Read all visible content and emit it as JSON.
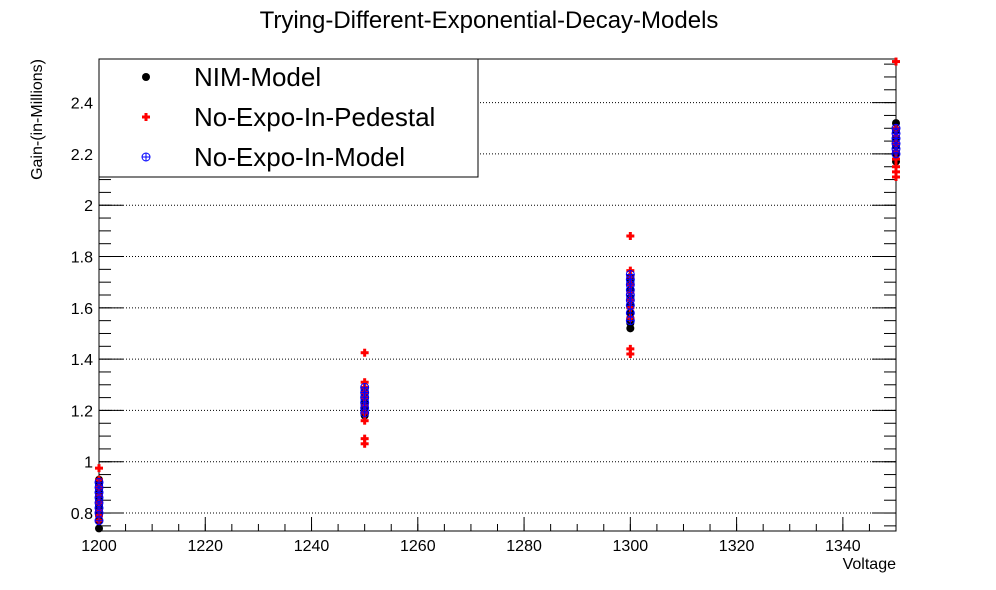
{
  "chart_data": {
    "type": "scatter",
    "title": "Trying-Different-Exponential-Decay-Models",
    "xlabel": "Voltage",
    "ylabel": "Gain-(in-Millions)",
    "xlim": [
      1200,
      1350
    ],
    "ylim": [
      0.73,
      2.57
    ],
    "x_ticks": [
      1200,
      1220,
      1240,
      1260,
      1280,
      1300,
      1320,
      1340
    ],
    "y_ticks": [
      0.8,
      1,
      1.2,
      1.4,
      1.6,
      1.8,
      2,
      2.2,
      2.4
    ],
    "y_grid": true,
    "x_grid": false,
    "legend_position": "top-left",
    "series": [
      {
        "name": "NIM-Model",
        "marker": "filled-circle",
        "color": "#000000",
        "points": [
          [
            1200,
            0.74
          ],
          [
            1200,
            0.77
          ],
          [
            1200,
            0.79
          ],
          [
            1200,
            0.81
          ],
          [
            1200,
            0.83
          ],
          [
            1200,
            0.85
          ],
          [
            1200,
            0.87
          ],
          [
            1200,
            0.89
          ],
          [
            1200,
            0.91
          ],
          [
            1200,
            0.93
          ],
          [
            1250,
            1.18
          ],
          [
            1250,
            1.2
          ],
          [
            1250,
            1.22
          ],
          [
            1250,
            1.24
          ],
          [
            1250,
            1.26
          ],
          [
            1250,
            1.28
          ],
          [
            1300,
            1.52
          ],
          [
            1300,
            1.54
          ],
          [
            1300,
            1.56
          ],
          [
            1300,
            1.58
          ],
          [
            1300,
            1.61
          ],
          [
            1300,
            1.64
          ],
          [
            1300,
            1.67
          ],
          [
            1300,
            1.7
          ],
          [
            1300,
            1.72
          ],
          [
            1350,
            2.17
          ],
          [
            1350,
            2.2
          ],
          [
            1350,
            2.23
          ],
          [
            1350,
            2.26
          ],
          [
            1350,
            2.29
          ],
          [
            1350,
            2.32
          ]
        ]
      },
      {
        "name": "No-Expo-In-Pedestal",
        "marker": "plus",
        "color": "#ff0000",
        "points": [
          [
            1200,
            0.77
          ],
          [
            1200,
            0.79
          ],
          [
            1200,
            0.81
          ],
          [
            1200,
            0.84
          ],
          [
            1200,
            0.87
          ],
          [
            1200,
            0.9
          ],
          [
            1200,
            0.93
          ],
          [
            1200,
            0.975
          ],
          [
            1250,
            1.07
          ],
          [
            1250,
            1.09
          ],
          [
            1250,
            1.16
          ],
          [
            1250,
            1.19
          ],
          [
            1250,
            1.22
          ],
          [
            1250,
            1.25
          ],
          [
            1250,
            1.27
          ],
          [
            1250,
            1.29
          ],
          [
            1250,
            1.31
          ],
          [
            1250,
            1.425
          ],
          [
            1300,
            1.42
          ],
          [
            1300,
            1.44
          ],
          [
            1300,
            1.56
          ],
          [
            1300,
            1.6
          ],
          [
            1300,
            1.63
          ],
          [
            1300,
            1.66
          ],
          [
            1300,
            1.69
          ],
          [
            1300,
            1.72
          ],
          [
            1300,
            1.745
          ],
          [
            1300,
            1.88
          ],
          [
            1350,
            2.11
          ],
          [
            1350,
            2.13
          ],
          [
            1350,
            2.15
          ],
          [
            1350,
            2.18
          ],
          [
            1350,
            2.21
          ],
          [
            1350,
            2.24
          ],
          [
            1350,
            2.27
          ],
          [
            1350,
            2.3
          ],
          [
            1350,
            2.56
          ]
        ]
      },
      {
        "name": "No-Expo-In-Model",
        "marker": "circle-plus",
        "color": "#0000ff",
        "points": [
          [
            1200,
            0.77
          ],
          [
            1200,
            0.8
          ],
          [
            1200,
            0.82
          ],
          [
            1200,
            0.84
          ],
          [
            1200,
            0.86
          ],
          [
            1200,
            0.88
          ],
          [
            1200,
            0.9
          ],
          [
            1200,
            0.92
          ],
          [
            1250,
            1.19
          ],
          [
            1250,
            1.21
          ],
          [
            1250,
            1.23
          ],
          [
            1250,
            1.25
          ],
          [
            1250,
            1.27
          ],
          [
            1250,
            1.29
          ],
          [
            1300,
            1.55
          ],
          [
            1300,
            1.58
          ],
          [
            1300,
            1.61
          ],
          [
            1300,
            1.63
          ],
          [
            1300,
            1.65
          ],
          [
            1300,
            1.67
          ],
          [
            1300,
            1.69
          ],
          [
            1300,
            1.71
          ],
          [
            1300,
            1.73
          ],
          [
            1350,
            2.2
          ],
          [
            1350,
            2.22
          ],
          [
            1350,
            2.24
          ],
          [
            1350,
            2.26
          ],
          [
            1350,
            2.28
          ],
          [
            1350,
            2.3
          ]
        ]
      }
    ]
  }
}
